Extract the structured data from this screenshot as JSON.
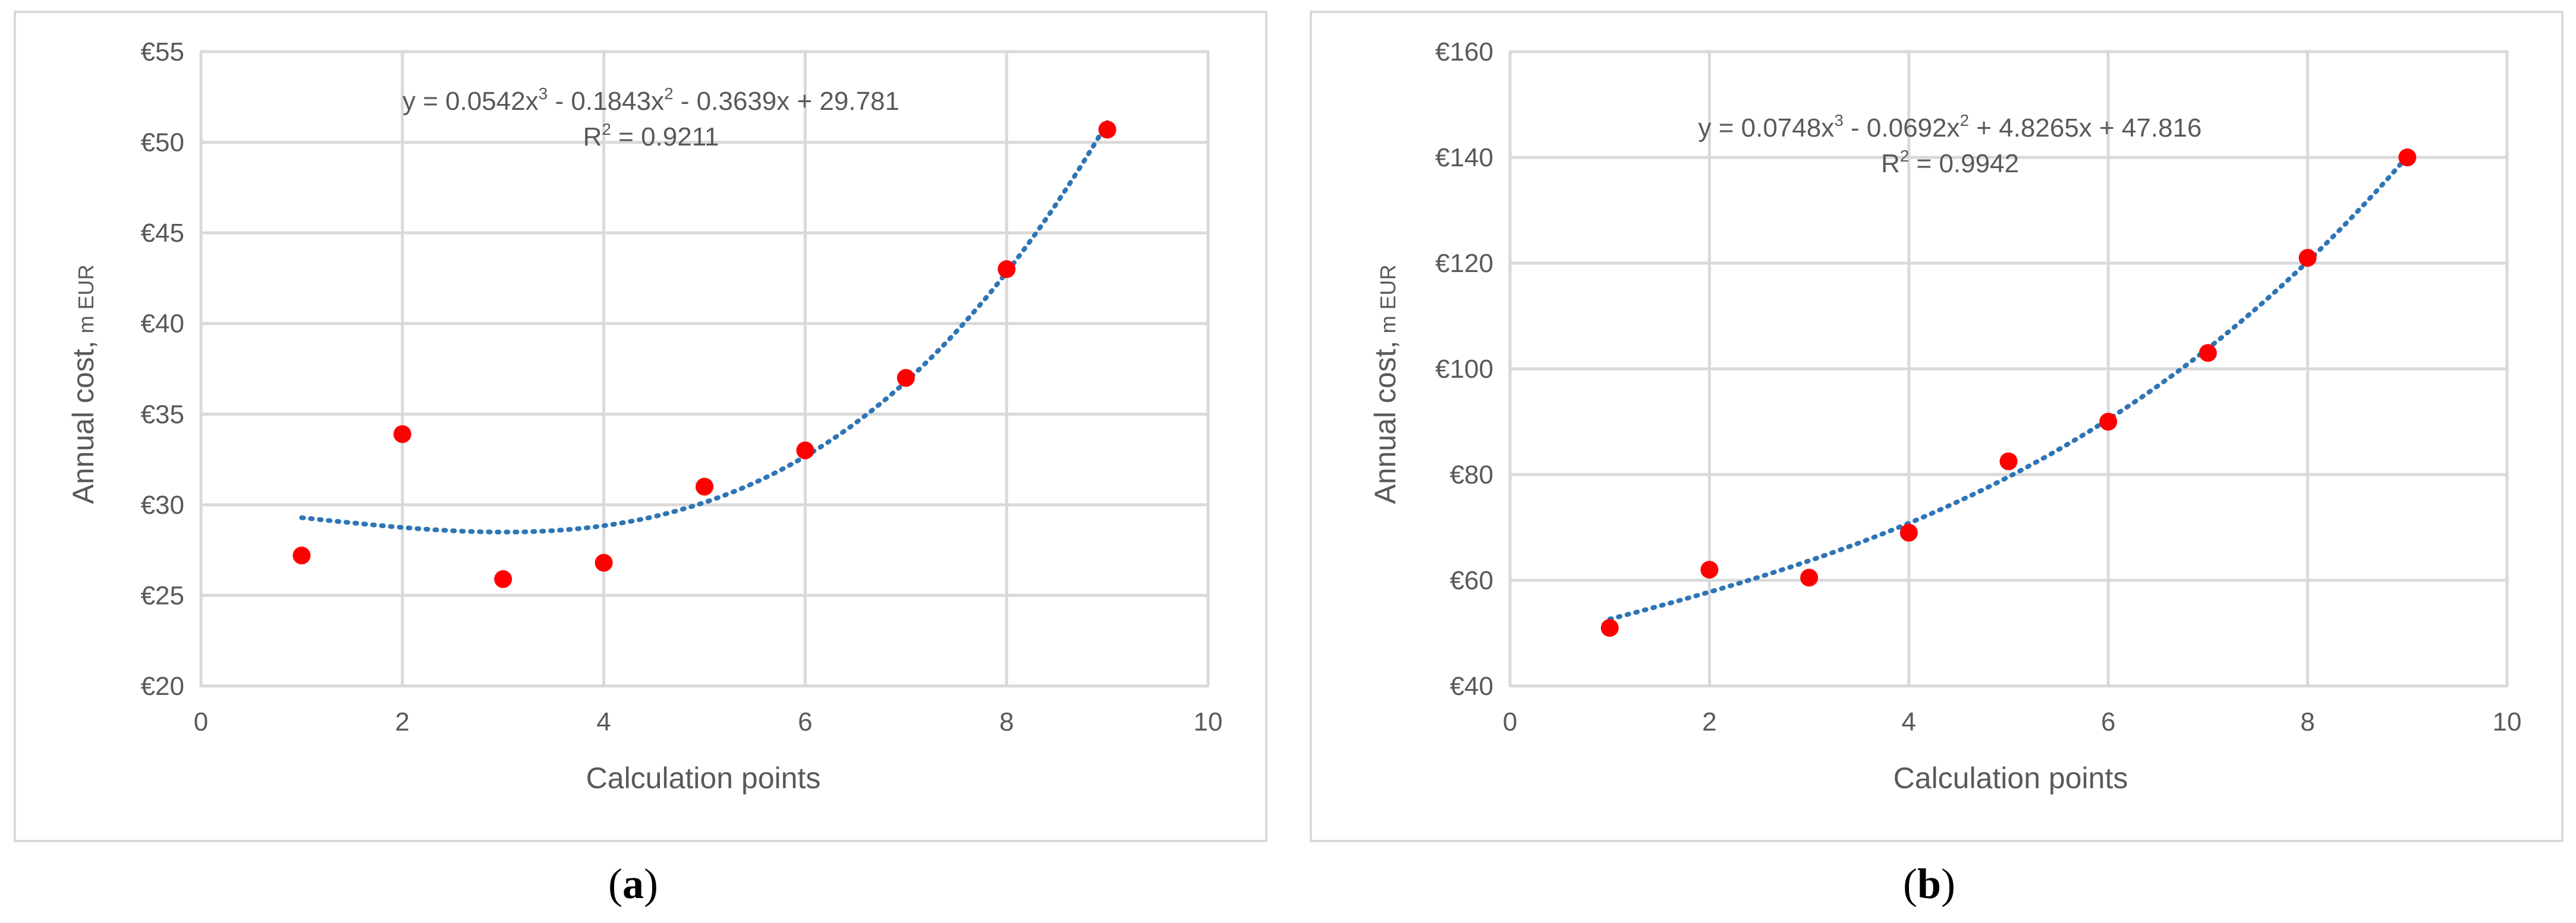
{
  "chart_data": [
    {
      "type": "scatter",
      "panel_label": "a",
      "x": [
        1,
        2,
        3,
        4,
        5,
        6,
        7,
        8,
        9
      ],
      "y": [
        27.2,
        33.9,
        25.9,
        26.8,
        31.0,
        33.0,
        37.0,
        43.0,
        50.7
      ],
      "xlabel": "Calculation points",
      "ylabel": "Annual cost,",
      "ylabel_unit": "m EUR",
      "xlim": [
        0,
        10
      ],
      "ylim": [
        20,
        55
      ],
      "xticks": [
        0,
        2,
        4,
        6,
        8,
        10
      ],
      "yticks": [
        20,
        25,
        30,
        35,
        40,
        45,
        50,
        55
      ],
      "ytick_prefix": "€",
      "grid": true,
      "point_color": "#ff0000",
      "trend": {
        "type": "polynomial",
        "coefficients": [
          0.0542,
          -0.1843,
          -0.3639,
          29.781
        ],
        "x_range": [
          1,
          9
        ],
        "color": "#2e75b6",
        "equation_label": {
          "y_eq": "y = 0.0542x",
          "t1": " - 0.1843x",
          "t2": " - 0.3639x + 29.781",
          "exp3": "3",
          "exp2": "2",
          "r2": "R",
          "r2_exp": "2",
          "r2_value": " = 0.9211"
        }
      }
    },
    {
      "type": "scatter",
      "panel_label": "b",
      "x": [
        1,
        2,
        3,
        4,
        5,
        6,
        7,
        8,
        9
      ],
      "y": [
        51.0,
        62.0,
        60.5,
        69.0,
        82.5,
        90.0,
        103.0,
        121.0,
        140.0
      ],
      "xlabel": "Calculation points",
      "ylabel": "Annual cost,",
      "ylabel_unit": "m EUR",
      "xlim": [
        0,
        10
      ],
      "ylim": [
        40,
        160
      ],
      "xticks": [
        0,
        2,
        4,
        6,
        8,
        10
      ],
      "yticks": [
        40,
        60,
        80,
        100,
        120,
        140,
        160
      ],
      "ytick_prefix": "€",
      "grid": true,
      "point_color": "#ff0000",
      "trend": {
        "type": "polynomial",
        "coefficients": [
          0.0748,
          -0.0692,
          4.8265,
          47.816
        ],
        "x_range": [
          1,
          9
        ],
        "color": "#2e75b6",
        "equation_label": {
          "y_eq": "y = 0.0748x",
          "t1": " - 0.0692x",
          "t2": " + 4.8265x + 47.816",
          "exp3": "3",
          "exp2": "2",
          "r2": "R",
          "r2_exp": "2",
          "r2_value": " = 0.9942"
        }
      }
    }
  ]
}
